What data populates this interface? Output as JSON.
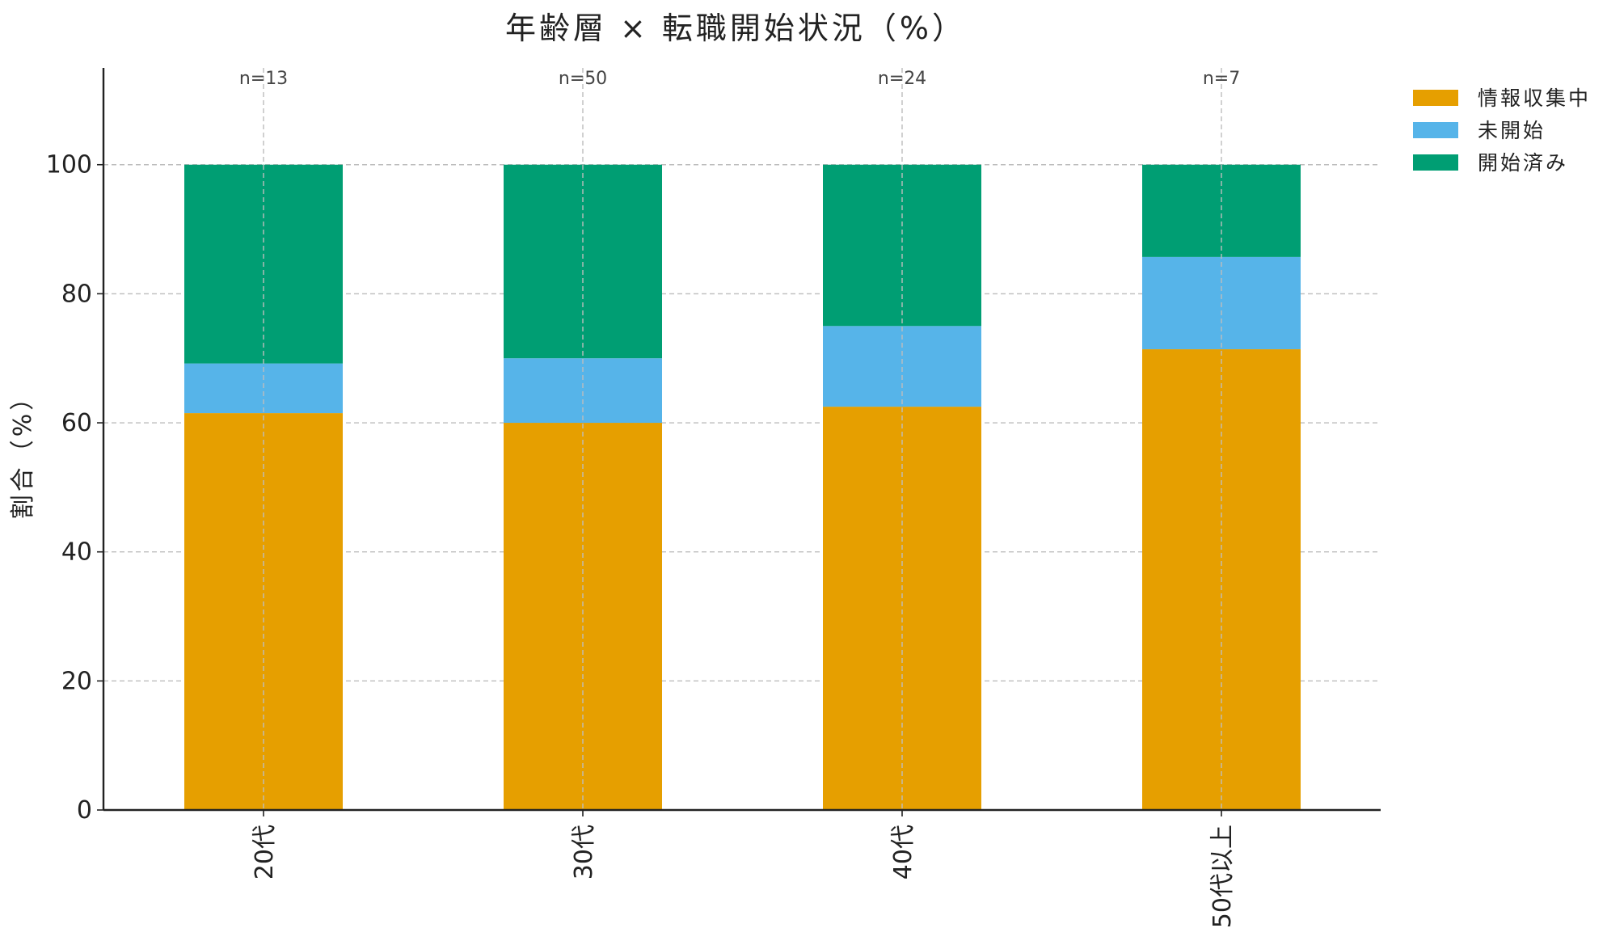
{
  "chart_data": {
    "type": "bar",
    "stacked": true,
    "title": "年齢層 × 転職開始状況（%）",
    "xlabel": "",
    "ylabel": "割合（%）",
    "ylim": [
      0,
      115
    ],
    "yticks": [
      0,
      20,
      40,
      60,
      80,
      100
    ],
    "categories": [
      "20代",
      "30代",
      "40代",
      "50代以上"
    ],
    "sample_sizes": [
      "n=13",
      "n=50",
      "n=24",
      "n=7"
    ],
    "series": [
      {
        "name": "情報収集中",
        "color": "#E69F00",
        "values": [
          61.5,
          60.0,
          62.5,
          71.4
        ]
      },
      {
        "name": "未開始",
        "color": "#56B4E9",
        "values": [
          7.7,
          10.0,
          12.5,
          14.3
        ]
      },
      {
        "name": "開始済み",
        "color": "#009E73",
        "values": [
          30.8,
          30.0,
          25.0,
          14.3
        ]
      }
    ],
    "grid": true,
    "legend_position": "top-right outside"
  }
}
